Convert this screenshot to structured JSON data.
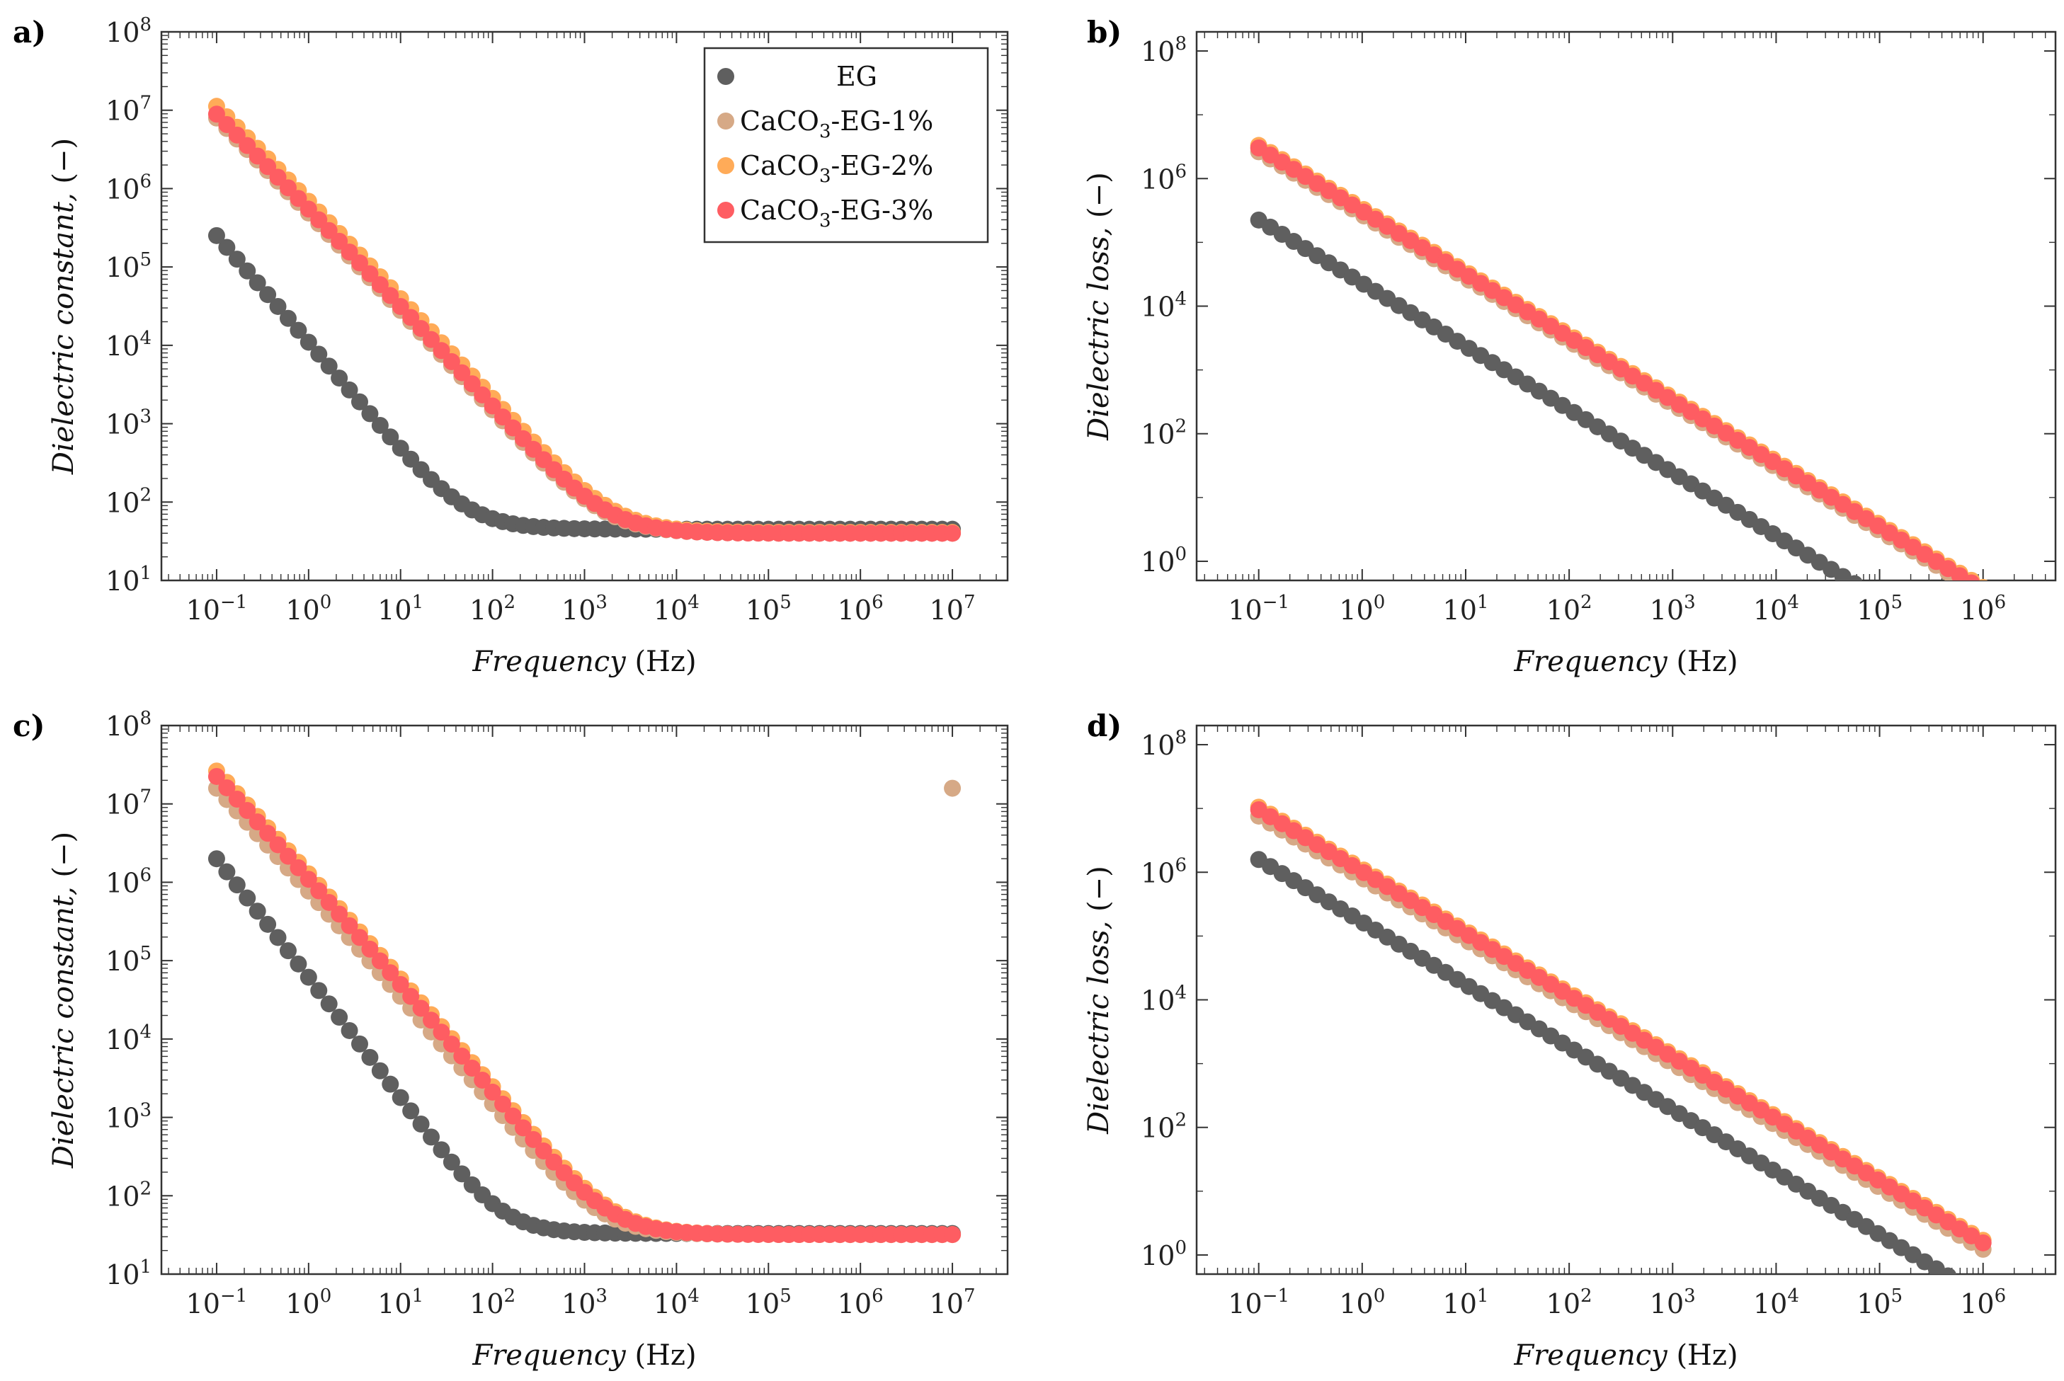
{
  "chart_data": [
    {
      "panel": "a)",
      "type": "scatter",
      "xlabel": "Frequency",
      "xunit": "(Hz)",
      "ylabel": "Dielectric constant,",
      "yunit": "(−)",
      "xscale": "log",
      "yscale": "log",
      "xlim_exp": [
        -1.6,
        7.6
      ],
      "ylim_exp": [
        1,
        8
      ],
      "xticks_exp": [
        -1,
        0,
        1,
        2,
        3,
        4,
        5,
        6,
        7
      ],
      "yticks_exp": [
        1,
        2,
        3,
        4,
        5,
        6,
        7,
        8
      ],
      "legend": "top-right",
      "series": [
        {
          "name": "EG",
          "color": "#5f5f5f",
          "model": {
            "type": "plateau",
            "A_exp": 5.4,
            "slope": 1.35,
            "plateau": 45
          }
        },
        {
          "name": "CaCO3-EG-1%",
          "color": "#d6a986",
          "model": {
            "type": "plateau",
            "A_exp": 6.9,
            "slope": 1.2,
            "plateau": 40
          }
        },
        {
          "name": "CaCO3-EG-2%",
          "color": "#ffab58",
          "model": {
            "type": "plateau",
            "A_exp": 7.05,
            "slope": 1.2,
            "plateau": 41
          }
        },
        {
          "name": "CaCO3-EG-3%",
          "color": "#fe5d62",
          "model": {
            "type": "plateau",
            "A_exp": 6.95,
            "slope": 1.2,
            "plateau": 40
          }
        }
      ]
    },
    {
      "panel": "b)",
      "type": "scatter",
      "xlabel": "Frequency",
      "xunit": "(Hz)",
      "ylabel": "Dielectric loss,",
      "yunit": "(−)",
      "xscale": "log",
      "yscale": "log",
      "xlim_exp": [
        -1.6,
        6.7
      ],
      "ylim_exp": [
        -0.3,
        8.3
      ],
      "xticks_exp": [
        -1,
        0,
        1,
        2,
        3,
        4,
        5,
        6
      ],
      "yticks_exp": [
        0,
        2,
        4,
        6,
        8
      ],
      "series": [
        {
          "name": "EG",
          "color": "#5f5f5f",
          "model": {
            "type": "power",
            "A_exp": 5.35,
            "slope": 0.99,
            "xmax_exp": 6.0
          }
        },
        {
          "name": "CaCO3-EG-1%",
          "color": "#d6a986",
          "model": {
            "type": "power",
            "A_exp": 6.42,
            "slope": 0.99,
            "xmax_exp": 6.0
          }
        },
        {
          "name": "CaCO3-EG-2%",
          "color": "#ffab58",
          "model": {
            "type": "power",
            "A_exp": 6.52,
            "slope": 0.99,
            "xmax_exp": 6.0
          }
        },
        {
          "name": "CaCO3-EG-3%",
          "color": "#fe5d62",
          "model": {
            "type": "power",
            "A_exp": 6.48,
            "slope": 0.99,
            "xmax_exp": 6.0
          }
        }
      ]
    },
    {
      "panel": "c)",
      "type": "scatter",
      "xlabel": "Frequency",
      "xunit": "(Hz)",
      "ylabel": "Dielectric constant,",
      "yunit": "(−)",
      "xscale": "log",
      "yscale": "log",
      "xlim_exp": [
        -1.6,
        7.6
      ],
      "ylim_exp": [
        1,
        8
      ],
      "xticks_exp": [
        -1,
        0,
        1,
        2,
        3,
        4,
        5,
        6,
        7
      ],
      "yticks_exp": [
        1,
        2,
        3,
        4,
        5,
        6,
        7,
        8
      ],
      "series": [
        {
          "name": "EG",
          "color": "#5f5f5f",
          "model": {
            "type": "plateau",
            "A_exp": 6.3,
            "slope": 1.5,
            "plateau": 33
          }
        },
        {
          "name": "CaCO3-EG-1%",
          "color": "#d6a986",
          "model": {
            "type": "plateau",
            "A_exp": 7.2,
            "slope": 1.3,
            "plateau": 32,
            "outlier": [
              7,
              7.2
            ]
          }
        },
        {
          "name": "CaCO3-EG-2%",
          "color": "#ffab58",
          "model": {
            "type": "plateau",
            "A_exp": 7.42,
            "slope": 1.3,
            "plateau": 32
          }
        },
        {
          "name": "CaCO3-EG-3%",
          "color": "#fe5d62",
          "model": {
            "type": "plateau",
            "A_exp": 7.35,
            "slope": 1.3,
            "plateau": 32
          }
        }
      ]
    },
    {
      "panel": "d)",
      "type": "scatter",
      "xlabel": "Frequency",
      "xunit": "(Hz)",
      "ylabel": "Dielectric loss,",
      "yunit": "(−)",
      "xscale": "log",
      "yscale": "log",
      "xlim_exp": [
        -1.6,
        6.7
      ],
      "ylim_exp": [
        -0.3,
        8.3
      ],
      "xticks_exp": [
        -1,
        0,
        1,
        2,
        3,
        4,
        5,
        6
      ],
      "yticks_exp": [
        0,
        2,
        4,
        6,
        8
      ],
      "series": [
        {
          "name": "EG",
          "color": "#5f5f5f",
          "model": {
            "type": "power",
            "A_exp": 6.2,
            "slope": 0.98,
            "xmax_exp": 6.0
          }
        },
        {
          "name": "CaCO3-EG-1%",
          "color": "#d6a986",
          "model": {
            "type": "power",
            "A_exp": 6.88,
            "slope": 0.97,
            "xmax_exp": 6.0
          }
        },
        {
          "name": "CaCO3-EG-2%",
          "color": "#ffab58",
          "model": {
            "type": "power",
            "A_exp": 7.02,
            "slope": 0.97,
            "xmax_exp": 6.0
          }
        },
        {
          "name": "CaCO3-EG-3%",
          "color": "#fe5d62",
          "model": {
            "type": "power",
            "A_exp": 6.98,
            "slope": 0.97,
            "xmax_exp": 6.0
          }
        }
      ]
    }
  ],
  "legend": {
    "entries": [
      {
        "label": "EG",
        "color": "#5f5f5f"
      },
      {
        "label": "CaCO",
        "sub": "3",
        "rest": "-EG-1%",
        "color": "#d6a986"
      },
      {
        "label": "CaCO",
        "sub": "3",
        "rest": "-EG-2%",
        "color": "#ffab58"
      },
      {
        "label": "CaCO",
        "sub": "3",
        "rest": "-EG-3%",
        "color": "#fe5d62"
      }
    ]
  }
}
